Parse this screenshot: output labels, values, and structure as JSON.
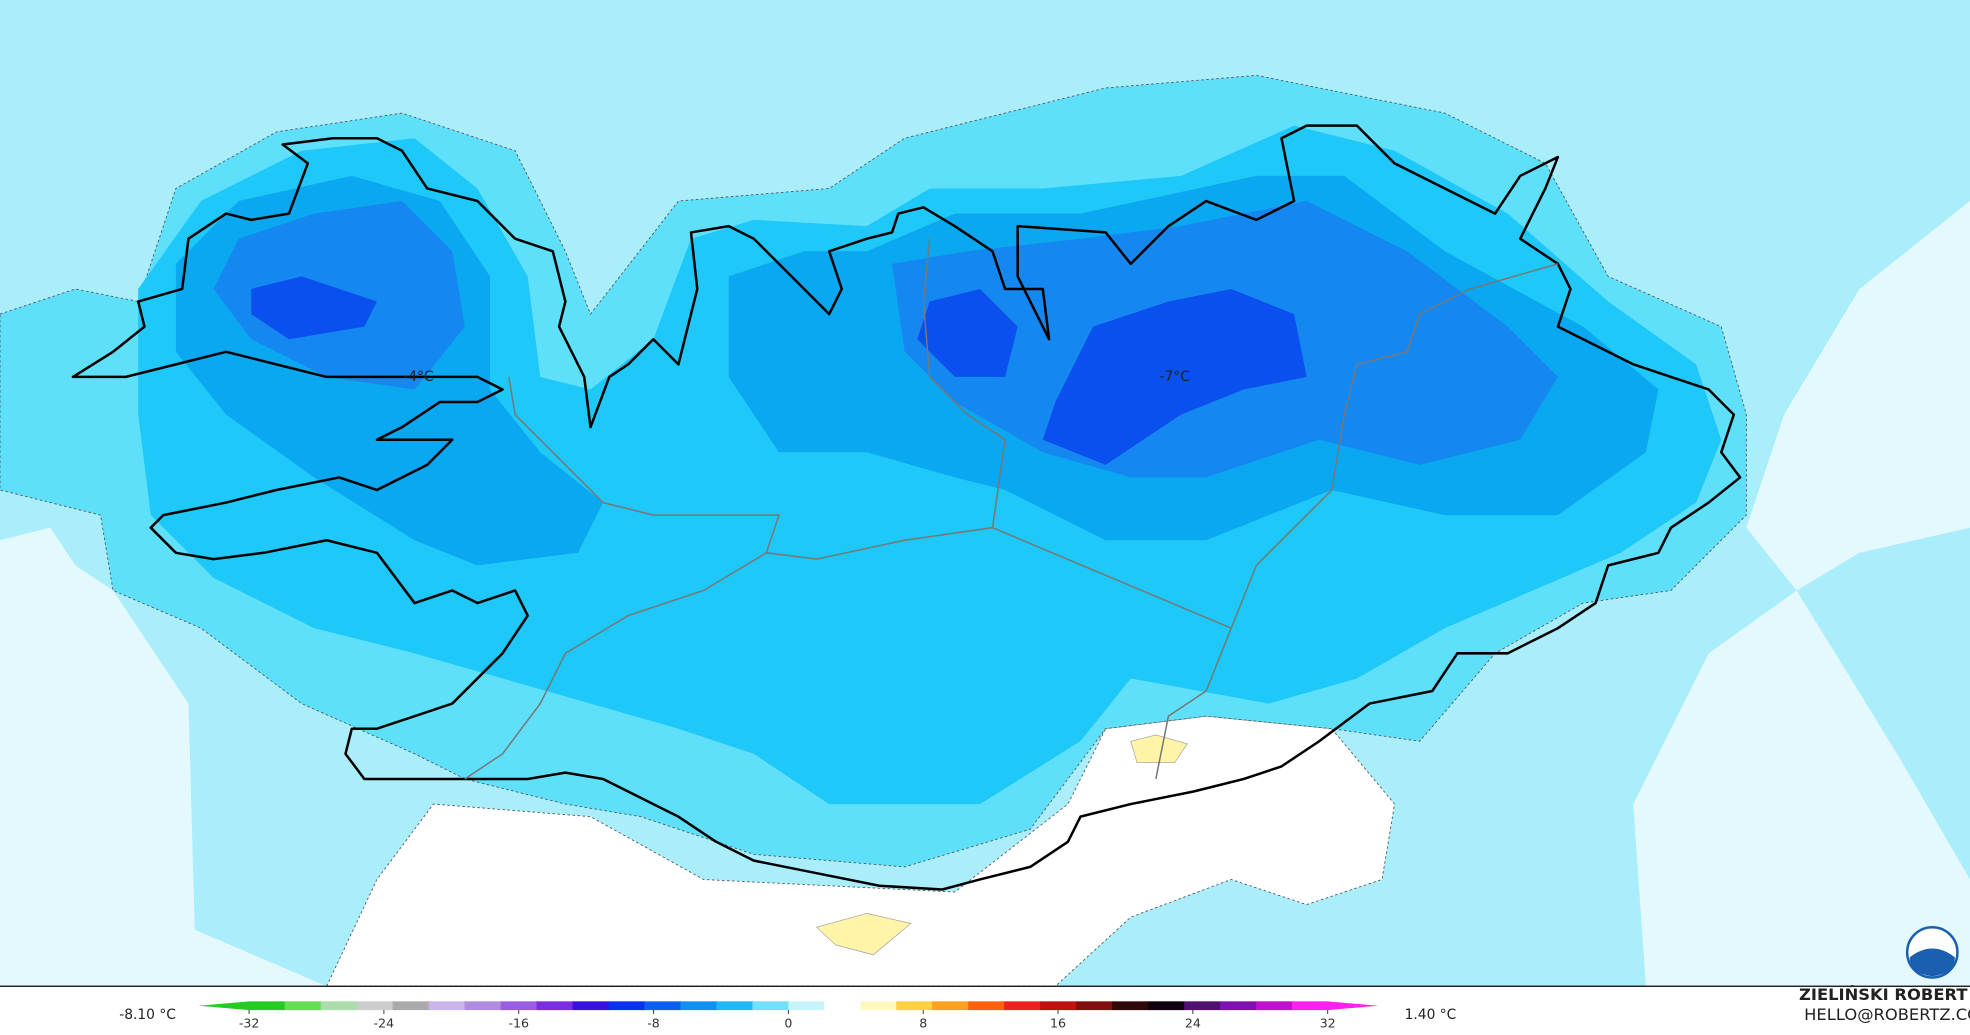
{
  "map": {
    "labels": [
      {
        "text": "-4°C",
        "lon": 333,
        "lat": 300
      },
      {
        "text": "-7°C",
        "lon": 935,
        "lat": 300
      }
    ]
  },
  "colorbar": {
    "min_label": "-8.10 °C",
    "max_label": "1.40 °C",
    "range": [
      -35,
      35
    ],
    "ticks": [
      -32,
      -24,
      -16,
      -8,
      0,
      8,
      16,
      24,
      32
    ],
    "colors": [
      "#22cc22",
      "#66dd55",
      "#aaddaa",
      "#cccccc",
      "#aaaaaa",
      "#c8b4e8",
      "#b08ce0",
      "#9a5ce0",
      "#7a2ee0",
      "#3a10e0",
      "#0a30f0",
      "#0a60f0",
      "#1090f0",
      "#20b8f8",
      "#70e0fc",
      "#c8f4fe",
      "#ffffff",
      "#fff8c0",
      "#ffd040",
      "#ffa020",
      "#ff6010",
      "#f02020",
      "#c01010",
      "#801010",
      "#300808",
      "#100010",
      "#501070",
      "#8010b0",
      "#c010d0",
      "#ff20f0"
    ]
  },
  "credit": {
    "name": "ZIELIŃSKI ROBERT",
    "email": "HELLO@ROBERTZ.CO"
  }
}
